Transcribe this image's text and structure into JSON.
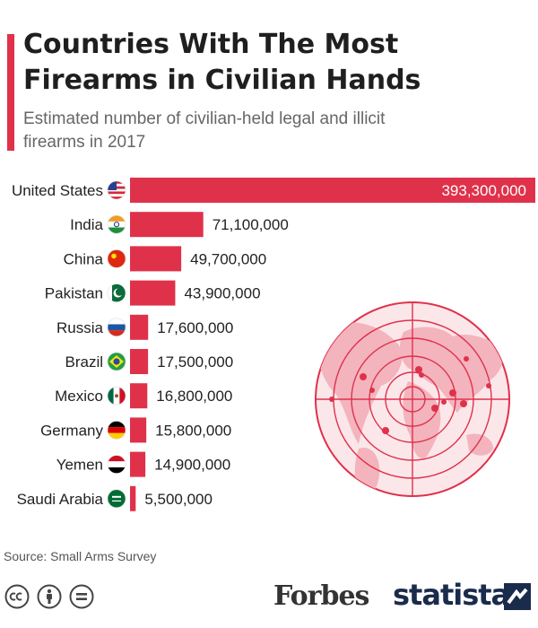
{
  "title": "Countries With The Most Firearms in Civilian Hands",
  "subtitle": "Estimated number of civilian-held legal and illicit firearms in 2017",
  "source": "Source: Small Arms Survey",
  "brands": {
    "forbes": "Forbes",
    "statista": "statista"
  },
  "colors": {
    "accent": "#e0314b",
    "bar": "#e0314b",
    "text": "#222222",
    "subtitle": "#666666",
    "statista": "#1a2b4c"
  },
  "icons": [
    "cc-icon",
    "attribution-icon",
    "no-derivatives-icon",
    "statista-mark-icon",
    "world-map-target-icon"
  ],
  "chart_data": {
    "type": "bar",
    "orientation": "horizontal",
    "categories": [
      "United States",
      "India",
      "China",
      "Pakistan",
      "Russia",
      "Brazil",
      "Mexico",
      "Germany",
      "Yemen",
      "Saudi Arabia"
    ],
    "values": [
      393300000,
      71100000,
      49700000,
      43900000,
      17600000,
      17500000,
      16800000,
      15800000,
      14900000,
      5500000
    ],
    "value_labels": [
      "393,300,000",
      "71,100,000",
      "49,700,000",
      "43,900,000",
      "17,600,000",
      "17,500,000",
      "16,800,000",
      "15,800,000",
      "14,900,000",
      "5,500,000"
    ],
    "flag_icons": [
      "us-flag-icon",
      "india-flag-icon",
      "china-flag-icon",
      "pakistan-flag-icon",
      "russia-flag-icon",
      "brazil-flag-icon",
      "mexico-flag-icon",
      "germany-flag-icon",
      "yemen-flag-icon",
      "saudi-arabia-flag-icon"
    ],
    "title": "Countries With The Most Firearms in Civilian Hands",
    "xlabel": "",
    "ylabel": "",
    "xlim": [
      0,
      393300000
    ],
    "grid": false,
    "legend": "none"
  }
}
